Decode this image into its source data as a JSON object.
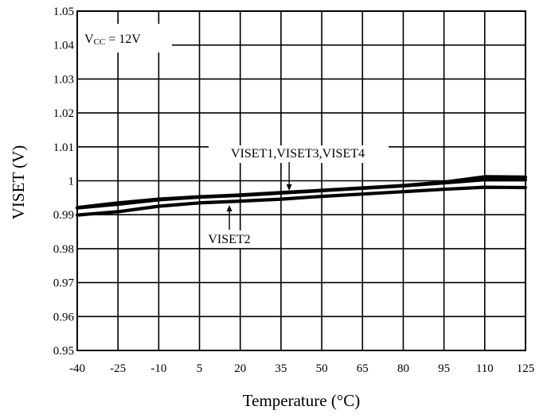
{
  "chart_data": {
    "type": "line",
    "xlabel": "Temperature (°C)",
    "ylabel": "VISET (V)",
    "x_ticks": [
      -40,
      -25,
      -10,
      5,
      20,
      35,
      50,
      65,
      80,
      95,
      110,
      125
    ],
    "y_ticks": [
      "0.95",
      "0.96",
      "0.97",
      "0.98",
      "0.99",
      "1",
      "1.01",
      "1.02",
      "1.03",
      "1.04",
      "1.05"
    ],
    "xlim": [
      -40,
      125
    ],
    "ylim": [
      0.95,
      1.05
    ],
    "grid": true,
    "series": [
      {
        "x": [
          -40,
          -25,
          -10,
          5,
          20,
          35,
          50,
          65,
          80,
          95,
          110,
          125
        ],
        "y": [
          0.9921,
          0.9935,
          0.9946,
          0.9953,
          0.9958,
          0.9965,
          0.9972,
          0.9979,
          0.9986,
          0.9996,
          1.0012,
          1.0011
        ]
      },
      {
        "x": [
          -40,
          -25,
          -10,
          5,
          20,
          35,
          50,
          65,
          80,
          95,
          110,
          125
        ],
        "y": [
          0.992,
          0.9931,
          0.9944,
          0.9952,
          0.9957,
          0.9964,
          0.9971,
          0.9978,
          0.9985,
          0.9994,
          1.0003,
          1.0003
        ]
      },
      {
        "x": [
          -40,
          -25,
          -10,
          5,
          20,
          35,
          50,
          65,
          80,
          95,
          110,
          125
        ],
        "y": [
          0.9899,
          0.9909,
          0.9925,
          0.9935,
          0.994,
          0.9946,
          0.9954,
          0.9961,
          0.9968,
          0.9975,
          0.9981,
          0.998
        ]
      }
    ],
    "annotations": [
      {
        "text_main": "V",
        "text_sub": "CC",
        "text_rest": " = 12V"
      },
      {
        "text": "VISET1,VISET3,VISET4",
        "target_x": 38,
        "target_y": 0.9964
      },
      {
        "text": "VISET2",
        "target_x": 16,
        "target_y": 0.9938
      }
    ]
  }
}
